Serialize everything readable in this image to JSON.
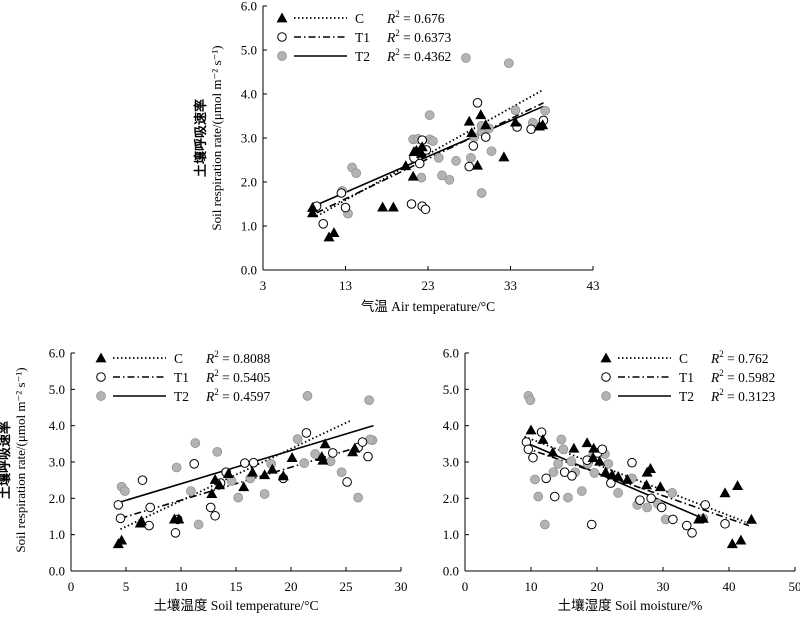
{
  "chart_data": [
    {
      "type": "scatter",
      "xlabel": "气温  Air temperature/°C",
      "ylabel_cn": "土壤呼吸速率",
      "ylabel_en": "Soil respiration rate/(μmol m⁻² s⁻¹)",
      "xlim": [
        3,
        43
      ],
      "ylim": [
        0,
        6
      ],
      "xticks": [
        "3",
        "13",
        "23",
        "33",
        "43"
      ],
      "yticks": [
        "0.0",
        "1.0",
        "2.0",
        "3.0",
        "4.0",
        "5.0",
        "6.0"
      ],
      "legend_position": "top-left",
      "series": [
        {
          "name": "C",
          "r2_label": "R",
          "r2_value": "= 0.676",
          "marker": "filled-triangle",
          "line": "dotted",
          "curve": [
            [
              9.5,
              1.22
            ],
            [
              37,
              4.1
            ]
          ],
          "points": [
            [
              9,
              1.42
            ],
            [
              9,
              1.3
            ],
            [
              11,
              0.75
            ],
            [
              11.6,
              0.85
            ],
            [
              17.5,
              1.43
            ],
            [
              18.8,
              1.43
            ],
            [
              20.3,
              2.37
            ],
            [
              21.2,
              2.13
            ],
            [
              21.6,
              2.72
            ],
            [
              22,
              2.72
            ],
            [
              22.2,
              2.65
            ],
            [
              21.3,
              2.69
            ],
            [
              22.3,
              2.8
            ],
            [
              28,
              3.38
            ],
            [
              28.3,
              3.12
            ],
            [
              29,
              2.38
            ],
            [
              29.4,
              3.53
            ],
            [
              30,
              3.3
            ],
            [
              32.2,
              2.57
            ],
            [
              33.6,
              3.36
            ],
            [
              36.5,
              3.27
            ],
            [
              36.9,
              3.3
            ]
          ]
        },
        {
          "name": "T1",
          "r2_label": "R",
          "r2_value": "= 0.6373",
          "marker": "open-circle",
          "line": "dash-dot",
          "curve": [
            [
              9.5,
              1.3
            ],
            [
              37,
              3.8
            ]
          ],
          "points": [
            [
              9.5,
              1.45
            ],
            [
              10.3,
              1.05
            ],
            [
              12.5,
              1.75
            ],
            [
              13,
              1.42
            ],
            [
              21.3,
              2.55
            ],
            [
              22,
              2.42
            ],
            [
              21,
              1.5
            ],
            [
              22.3,
              1.45
            ],
            [
              22.7,
              1.38
            ],
            [
              22.3,
              2.95
            ],
            [
              22.8,
              2.73
            ],
            [
              28,
              2.35
            ],
            [
              29,
              3.8
            ],
            [
              28.5,
              2.82
            ],
            [
              30,
              3.02
            ],
            [
              33.8,
              3.25
            ],
            [
              35.5,
              3.2
            ],
            [
              37,
              3.4
            ]
          ]
        },
        {
          "name": "T2",
          "r2_label": "R",
          "r2_value": "= 0.4362",
          "marker": "gray-circle",
          "line": "solid",
          "curve": [
            [
              9.5,
              1.48
            ],
            [
              37,
              3.72
            ]
          ],
          "points": [
            [
              12.6,
              1.8
            ],
            [
              13.3,
              1.28
            ],
            [
              13.8,
              2.33
            ],
            [
              14.3,
              2.2
            ],
            [
              21.2,
              2.97
            ],
            [
              21.8,
              2.98
            ],
            [
              22.2,
              2.1
            ],
            [
              23.2,
              2.97
            ],
            [
              23.6,
              2.93
            ],
            [
              23.2,
              3.52
            ],
            [
              24.3,
              2.55
            ],
            [
              24.7,
              2.15
            ],
            [
              25.6,
              2.05
            ],
            [
              26.4,
              2.48
            ],
            [
              27.6,
              4.82
            ],
            [
              28.2,
              2.55
            ],
            [
              28.6,
              3.02
            ],
            [
              29.5,
              3.15
            ],
            [
              29.5,
              3.28
            ],
            [
              30.4,
              3.22
            ],
            [
              30.7,
              2.7
            ],
            [
              29.5,
              1.75
            ],
            [
              32.8,
              4.7
            ],
            [
              33.6,
              3.63
            ],
            [
              35.7,
              3.35
            ],
            [
              37.2,
              3.62
            ]
          ]
        }
      ]
    },
    {
      "type": "scatter",
      "xlabel": "土壤温度  Soil temperature/°C",
      "ylabel_cn": "土壤呼吸速率",
      "ylabel_en": "Soil respiration rate/(μmol m⁻² s⁻¹)",
      "xlim": [
        0,
        30
      ],
      "ylim": [
        0,
        6
      ],
      "xticks": [
        "0",
        "5",
        "10",
        "15",
        "20",
        "25",
        "30"
      ],
      "yticks": [
        "0.0",
        "1.0",
        "2.0",
        "3.0",
        "4.0",
        "5.0",
        "6.0"
      ],
      "legend_position": "top-left",
      "series": [
        {
          "name": "C",
          "r2_label": "R",
          "r2_value": "= 0.8088",
          "marker": "filled-triangle",
          "line": "dotted",
          "curve": [
            [
              4.5,
              1.15
            ],
            [
              25.5,
              4.15
            ]
          ],
          "points": [
            [
              4.3,
              0.75
            ],
            [
              4.6,
              0.85
            ],
            [
              6.4,
              1.38
            ],
            [
              6.3,
              1.32
            ],
            [
              9.4,
              1.43
            ],
            [
              9.8,
              1.43
            ],
            [
              12.8,
              2.13
            ],
            [
              13.1,
              2.52
            ],
            [
              13.5,
              2.37
            ],
            [
              14.3,
              2.68
            ],
            [
              15.7,
              2.32
            ],
            [
              16.5,
              2.72
            ],
            [
              17.6,
              2.65
            ],
            [
              18.3,
              2.8
            ],
            [
              19.3,
              2.62
            ],
            [
              20.1,
              3.12
            ],
            [
              22.8,
              3.15
            ],
            [
              22.9,
              3.05
            ],
            [
              23.1,
              3.5
            ],
            [
              25.6,
              3.28
            ],
            [
              25.8,
              3.38
            ]
          ]
        },
        {
          "name": "T1",
          "r2_label": "R",
          "r2_value": "= 0.5405",
          "marker": "open-circle",
          "line": "dash-dot",
          "curve": [
            [
              4.5,
              1.45
            ],
            [
              26,
              3.4
            ]
          ],
          "points": [
            [
              4.3,
              1.82
            ],
            [
              4.5,
              1.45
            ],
            [
              6.5,
              2.5
            ],
            [
              7.1,
              1.25
            ],
            [
              7.2,
              1.75
            ],
            [
              9.5,
              1.05
            ],
            [
              9.7,
              1.42
            ],
            [
              11.2,
              2.95
            ],
            [
              12.7,
              1.75
            ],
            [
              13.1,
              1.52
            ],
            [
              13.6,
              2.42
            ],
            [
              14.1,
              2.72
            ],
            [
              15.8,
              2.97
            ],
            [
              16.6,
              2.98
            ],
            [
              19.3,
              2.55
            ],
            [
              21.4,
              3.8
            ],
            [
              23.8,
              3.25
            ],
            [
              25.1,
              2.45
            ],
            [
              26.1,
              3.4
            ],
            [
              26.5,
              3.55
            ],
            [
              27,
              3.15
            ]
          ]
        },
        {
          "name": "T2",
          "r2_label": "R",
          "r2_value": "= 0.4597",
          "marker": "gray-circle",
          "line": "solid",
          "curve": [
            [
              4.5,
              1.9
            ],
            [
              27.5,
              4.0
            ]
          ],
          "points": [
            [
              4.6,
              2.32
            ],
            [
              4.9,
              2.2
            ],
            [
              9.6,
              2.85
            ],
            [
              10.9,
              2.2
            ],
            [
              11.3,
              3.52
            ],
            [
              11.6,
              1.28
            ],
            [
              13.3,
              3.28
            ],
            [
              14.6,
              2.48
            ],
            [
              15.2,
              2.02
            ],
            [
              16.3,
              2.55
            ],
            [
              17.6,
              2.12
            ],
            [
              18.2,
              2.95
            ],
            [
              20.6,
              3.63
            ],
            [
              21.2,
              2.97
            ],
            [
              21.5,
              4.82
            ],
            [
              22.2,
              3.22
            ],
            [
              23.6,
              3.02
            ],
            [
              24.6,
              2.72
            ],
            [
              26.1,
              2.02
            ],
            [
              27.1,
              4.7
            ],
            [
              27.4,
              3.6
            ],
            [
              27.2,
              3.62
            ]
          ]
        }
      ]
    },
    {
      "type": "scatter",
      "xlabel": "土壤湿度  Soil moisture/%",
      "xlim": [
        0,
        50
      ],
      "ylim": [
        0,
        6
      ],
      "xticks": [
        "0",
        "10",
        "20",
        "30",
        "40",
        "50"
      ],
      "yticks": [
        "0.0",
        "1.0",
        "2.0",
        "3.0",
        "4.0",
        "5.0",
        "6.0"
      ],
      "legend_position": "top-right",
      "series": [
        {
          "name": "C",
          "r2_label": "R",
          "r2_value": "= 0.762",
          "marker": "filled-triangle",
          "line": "dotted",
          "curve": [
            [
              9,
              3.7
            ],
            [
              42.5,
              1.35
            ]
          ],
          "points": [
            [
              10,
              3.88
            ],
            [
              11.8,
              3.62
            ],
            [
              13.3,
              3.27
            ],
            [
              16.5,
              3.38
            ],
            [
              18.5,
              3.53
            ],
            [
              19.5,
              3.38
            ],
            [
              19.4,
              3.12
            ],
            [
              20.4,
              3.02
            ],
            [
              21.3,
              2.72
            ],
            [
              22.3,
              2.65
            ],
            [
              23.2,
              2.6
            ],
            [
              24.6,
              2.52
            ],
            [
              27.5,
              2.37
            ],
            [
              27.6,
              2.72
            ],
            [
              28.1,
              2.82
            ],
            [
              29.6,
              2.32
            ],
            [
              35.4,
              1.43
            ],
            [
              36.1,
              1.45
            ],
            [
              39.4,
              2.15
            ],
            [
              40.5,
              0.75
            ],
            [
              41.3,
              2.35
            ],
            [
              41.8,
              0.85
            ],
            [
              43.4,
              1.42
            ]
          ]
        },
        {
          "name": "T1",
          "r2_label": "R",
          "r2_value": "= 0.5982",
          "marker": "open-circle",
          "line": "dash-dot",
          "curve": [
            [
              9,
              3.4
            ],
            [
              43,
              1.25
            ]
          ],
          "points": [
            [
              9.3,
              3.55
            ],
            [
              9.6,
              3.35
            ],
            [
              10.3,
              3.12
            ],
            [
              11.6,
              3.82
            ],
            [
              12.3,
              2.55
            ],
            [
              13.6,
              2.05
            ],
            [
              15.1,
              2.72
            ],
            [
              16.2,
              2.62
            ],
            [
              18.5,
              3.05
            ],
            [
              19.2,
              1.28
            ],
            [
              20.1,
              3.25
            ],
            [
              20.8,
              3.35
            ],
            [
              22.1,
              2.42
            ],
            [
              25.3,
              2.98
            ],
            [
              26.5,
              1.95
            ],
            [
              28.2,
              2.0
            ],
            [
              29.8,
              1.75
            ],
            [
              31.5,
              1.42
            ],
            [
              33.6,
              1.25
            ],
            [
              34.4,
              1.05
            ],
            [
              36.4,
              1.82
            ],
            [
              39.4,
              1.3
            ]
          ]
        },
        {
          "name": "T2",
          "r2_label": "R",
          "r2_value": "= 0.3123",
          "marker": "gray-circle",
          "line": "solid",
          "curve": [
            [
              9,
              3.55
            ],
            [
              36,
              1.45
            ]
          ],
          "points": [
            [
              9.6,
              4.82
            ],
            [
              9.9,
              4.7
            ],
            [
              10.6,
              2.52
            ],
            [
              11.1,
              2.05
            ],
            [
              12.1,
              1.28
            ],
            [
              13.4,
              2.72
            ],
            [
              14.1,
              2.95
            ],
            [
              14.6,
              3.62
            ],
            [
              14.9,
              3.35
            ],
            [
              15.6,
              2.02
            ],
            [
              16.1,
              3.02
            ],
            [
              16.7,
              2.72
            ],
            [
              17.7,
              2.2
            ],
            [
              18.6,
              2.95
            ],
            [
              19.2,
              3.12
            ],
            [
              19.6,
              2.7
            ],
            [
              21.2,
              3.22
            ],
            [
              21.7,
              2.95
            ],
            [
              23.2,
              2.15
            ],
            [
              25.3,
              2.55
            ],
            [
              26.1,
              1.82
            ],
            [
              27.6,
              1.75
            ],
            [
              29.2,
              1.85
            ],
            [
              30.4,
              1.42
            ],
            [
              31.4,
              2.15
            ],
            [
              36.1,
              1.45
            ]
          ]
        }
      ]
    }
  ]
}
